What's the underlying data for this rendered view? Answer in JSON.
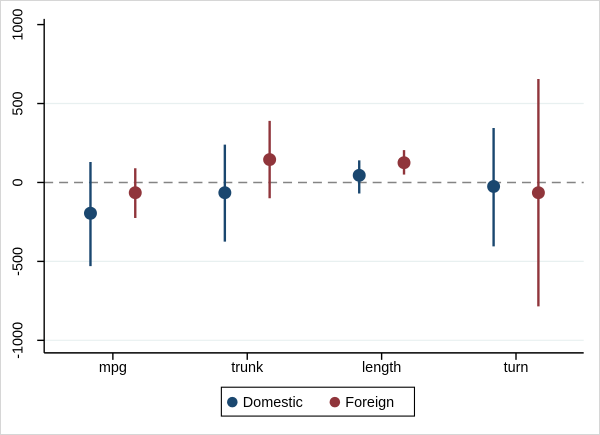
{
  "chart_data": {
    "type": "scatter",
    "subtype": "coefficient-plot-with-confidence-intervals",
    "title": "",
    "xlabel": "",
    "ylabel": "",
    "categories": [
      "mpg",
      "trunk",
      "length",
      "turn"
    ],
    "series": [
      {
        "name": "Domestic",
        "color": "#1a476f",
        "estimates": [
          -195,
          -65,
          45,
          -25
        ],
        "ci_low": [
          -530,
          -375,
          -70,
          -405
        ],
        "ci_high": [
          130,
          240,
          140,
          345
        ]
      },
      {
        "name": "Foreign",
        "color": "#90353b",
        "estimates": [
          -65,
          145,
          125,
          -65
        ],
        "ci_low": [
          -225,
          -100,
          50,
          -785
        ],
        "ci_high": [
          90,
          390,
          205,
          655
        ]
      }
    ],
    "yticks": [
      1000,
      500,
      0,
      -500,
      -1000
    ],
    "ytick_labels": [
      "1000",
      "500",
      "0",
      "-500",
      "-1000"
    ],
    "ylim": [
      -1000,
      1000
    ],
    "gridlines_at": [
      500,
      -500,
      -1000
    ],
    "grid_color": "#e8f0f0",
    "zero_line": {
      "value": 0,
      "style": "dashed",
      "color": "#848484"
    },
    "axis_color": "#000000",
    "legend": {
      "position": "bottom",
      "items": [
        "Domestic",
        "Foreign"
      ]
    }
  }
}
